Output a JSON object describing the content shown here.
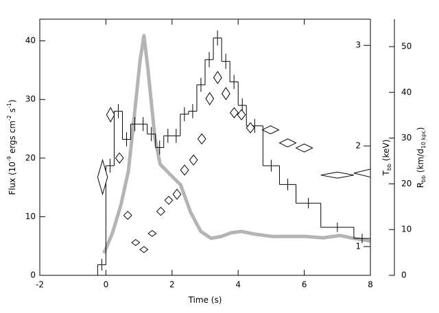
{
  "chart_data": {
    "type": "histogram",
    "xlabel": [
      {
        "text": "Time (s)"
      }
    ],
    "ylabel": [
      {
        "text": "Flux (10"
      },
      {
        "text": "-9",
        "sup": true
      },
      {
        "text": " ergs cm"
      },
      {
        "text": "-2",
        "sup": true
      },
      {
        "text": " s"
      },
      {
        "text": "-1",
        "sup": true
      },
      {
        "text": ")"
      }
    ],
    "y2label": [
      {
        "text": "T"
      },
      {
        "text": "bb",
        "sub": true
      },
      {
        "text": " (keV)"
      }
    ],
    "y3label": [
      {
        "text": "R"
      },
      {
        "text": "bb",
        "sub": true
      },
      {
        "text": " (km/d"
      },
      {
        "text": "10 kpc",
        "sub": true
      },
      {
        "text": ")"
      }
    ],
    "xlim": [
      -2,
      8
    ],
    "xticks": [
      -2,
      0,
      2,
      4,
      6,
      8
    ],
    "ylim": [
      0,
      43.7
    ],
    "yticks": [
      0,
      10,
      20,
      30,
      40
    ],
    "y2lim": [
      0.714,
      3.26
    ],
    "y2ticks": [
      1,
      2,
      3
    ],
    "y3lim": [
      0,
      56
    ],
    "y3ticks": [
      0,
      10,
      20,
      30,
      40,
      50
    ],
    "color": "#000000",
    "bins": [
      -0.25,
      0,
      0.25,
      0.5,
      0.75,
      1.0,
      1.25,
      1.5,
      1.75,
      2.0,
      2.25,
      2.5,
      2.75,
      3.0,
      3.25,
      3.5,
      3.75,
      4.0,
      4.25,
      4.75,
      5.25,
      5.75,
      6.5,
      7.5,
      8.0
    ],
    "values": [
      1.8,
      18.7,
      28.0,
      23.2,
      25.8,
      25.8,
      24.1,
      21.8,
      23.8,
      23.8,
      27.5,
      28.0,
      32.5,
      36.8,
      40.5,
      36.5,
      33.0,
      29.0,
      25.5,
      18.7,
      15.5,
      12.3,
      8.2,
      6.3
    ],
    "errors": [
      1.0,
      1.2,
      1.2,
      1.2,
      1.2,
      1.2,
      1.2,
      1.2,
      1.2,
      1.2,
      1.2,
      1.2,
      1.2,
      1.3,
      1.3,
      1.3,
      1.2,
      1.2,
      1.2,
      1.0,
      1.0,
      0.9,
      0.8,
      0.8
    ],
    "overlays": [
      {
        "type": "scatter",
        "axis": "y2",
        "color": "#000000",
        "x": [
          -0.1,
          0.14,
          0.41,
          0.66,
          0.9,
          1.15,
          1.4,
          1.66,
          1.9,
          2.15,
          2.38,
          2.65,
          2.9,
          3.14,
          3.38,
          3.63,
          3.88,
          4.1,
          4.37,
          4.98,
          5.5,
          6.0,
          7.0,
          8.0
        ],
        "xerr": [
          0.15,
          0.12,
          0.12,
          0.12,
          0.12,
          0.12,
          0.12,
          0.12,
          0.12,
          0.12,
          0.12,
          0.12,
          0.12,
          0.12,
          0.12,
          0.12,
          0.12,
          0.12,
          0.12,
          0.25,
          0.25,
          0.25,
          0.5,
          0.5
        ],
        "values": [
          1.69,
          2.31,
          1.88,
          1.31,
          1.04,
          0.97,
          1.13,
          1.35,
          1.46,
          1.52,
          1.76,
          1.86,
          2.07,
          2.47,
          2.68,
          2.52,
          2.33,
          2.31,
          2.18,
          2.16,
          2.03,
          1.98,
          1.71,
          1.73
        ],
        "errors": [
          0.17,
          0.07,
          0.05,
          0.04,
          0.03,
          0.03,
          0.03,
          0.04,
          0.04,
          0.05,
          0.05,
          0.05,
          0.05,
          0.06,
          0.06,
          0.06,
          0.05,
          0.05,
          0.05,
          0.04,
          0.04,
          0.04,
          0.03,
          0.04
        ]
      },
      {
        "type": "line",
        "axis": "y3",
        "color": "#b4b4b4",
        "x": [
          -0.06,
          0.2,
          0.45,
          0.68,
          0.88,
          1.03,
          1.15,
          1.27,
          1.48,
          1.64,
          1.95,
          2.26,
          2.56,
          2.87,
          3.18,
          3.49,
          3.79,
          4.1,
          4.51,
          5.03,
          5.54,
          6.05,
          6.56,
          7.08,
          7.49,
          8.0
        ],
        "values": [
          4.8,
          9.3,
          15.3,
          22.8,
          36.3,
          46.8,
          52.4,
          45.2,
          30.2,
          24.3,
          22.0,
          19.8,
          13.8,
          9.6,
          8.1,
          8.5,
          9.3,
          9.6,
          9.0,
          8.5,
          8.5,
          8.5,
          8.2,
          8.7,
          8.1,
          7.5
        ]
      }
    ]
  }
}
